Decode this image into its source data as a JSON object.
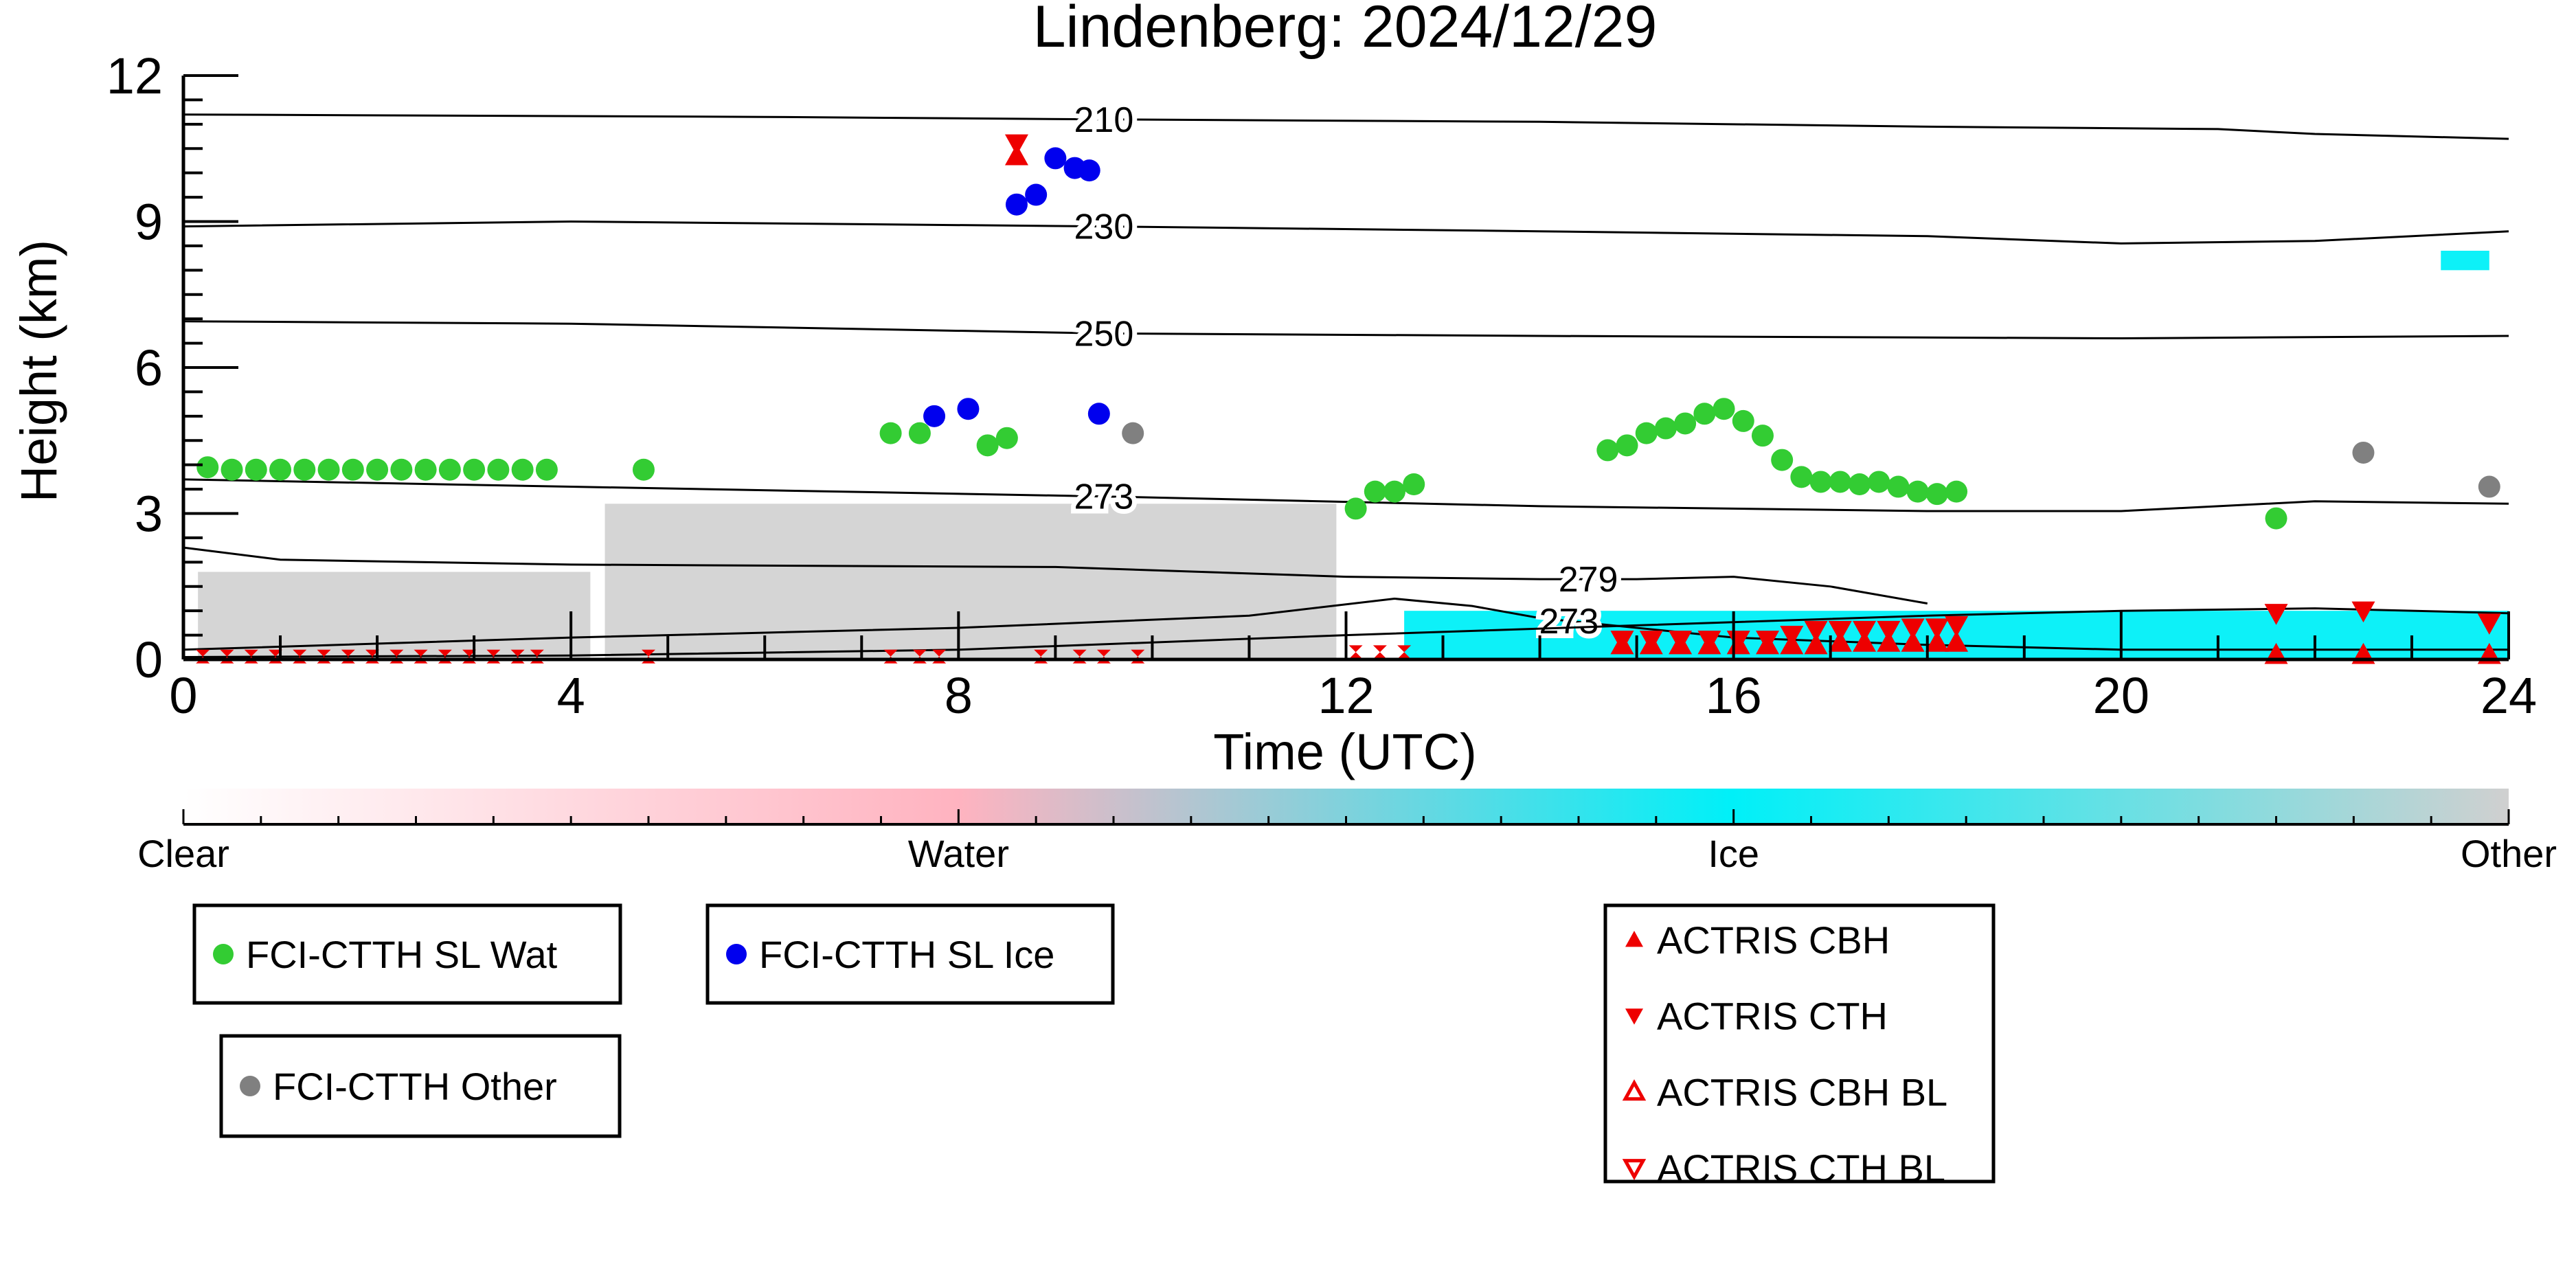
{
  "chart_data": {
    "type": "scatter",
    "title": "Lindenberg: 2024/12/29",
    "xlabel": "Time (UTC)",
    "ylabel": "Height (km)",
    "xlim": [
      0,
      24
    ],
    "ylim": [
      0,
      12
    ],
    "xticks": [
      0,
      4,
      8,
      12,
      16,
      20,
      24
    ],
    "yticks": [
      0,
      3,
      6,
      9,
      12
    ],
    "grid": false,
    "colorbar": {
      "labels": [
        "Clear",
        "Water",
        "Ice",
        "Other"
      ],
      "colors": [
        "#ffffff",
        "#ffb3c0",
        "#00f0f8",
        "#d0d0d0"
      ]
    },
    "temperature_contours": [
      {
        "label": "210",
        "label_x": 9.5,
        "points": [
          [
            0,
            11.2
          ],
          [
            6,
            11.15
          ],
          [
            9.5,
            11.1
          ],
          [
            14,
            11.05
          ],
          [
            18,
            10.95
          ],
          [
            21,
            10.9
          ],
          [
            22,
            10.8
          ],
          [
            24,
            10.7
          ]
        ]
      },
      {
        "label": "230",
        "label_x": 9.5,
        "points": [
          [
            0,
            8.9
          ],
          [
            4,
            9.0
          ],
          [
            9.5,
            8.9
          ],
          [
            14,
            8.8
          ],
          [
            18,
            8.7
          ],
          [
            20,
            8.55
          ],
          [
            22,
            8.6
          ],
          [
            24,
            8.8
          ]
        ]
      },
      {
        "label": "250",
        "label_x": 9.5,
        "points": [
          [
            0,
            6.95
          ],
          [
            4,
            6.9
          ],
          [
            9.5,
            6.7
          ],
          [
            14,
            6.65
          ],
          [
            20,
            6.6
          ],
          [
            24,
            6.65
          ]
        ]
      },
      {
        "label": "273",
        "label_x": 9.5,
        "points": [
          [
            0,
            3.7
          ],
          [
            4,
            3.55
          ],
          [
            9.5,
            3.35
          ],
          [
            14,
            3.15
          ],
          [
            18,
            3.05
          ],
          [
            20,
            3.05
          ],
          [
            22,
            3.25
          ],
          [
            24,
            3.2
          ]
        ]
      },
      {
        "label": "279",
        "label_x": 14.5,
        "points": [
          [
            0,
            2.3
          ],
          [
            1,
            2.05
          ],
          [
            4,
            1.95
          ],
          [
            9,
            1.9
          ],
          [
            12,
            1.7
          ],
          [
            14,
            1.65
          ],
          [
            15,
            1.65
          ],
          [
            16,
            1.7
          ],
          [
            17,
            1.5
          ],
          [
            18,
            1.15
          ]
        ]
      },
      {
        "label": "273",
        "label_x": 14.3,
        "points": [
          [
            0,
            0.2
          ],
          [
            4,
            0.45
          ],
          [
            8,
            0.65
          ],
          [
            11,
            0.9
          ],
          [
            12.5,
            1.25
          ],
          [
            13.3,
            1.1
          ],
          [
            14,
            0.85
          ],
          [
            16,
            0.45
          ],
          [
            18,
            0.3
          ],
          [
            20,
            0.2
          ],
          [
            22,
            0.2
          ],
          [
            24,
            0.2
          ]
        ]
      },
      {
        "label": "",
        "label_x": null,
        "points": [
          [
            0,
            0.05
          ],
          [
            4,
            0.08
          ],
          [
            8,
            0.2
          ],
          [
            12,
            0.5
          ],
          [
            15,
            0.7
          ],
          [
            18,
            0.9
          ],
          [
            20,
            1.0
          ],
          [
            22,
            1.05
          ],
          [
            24,
            0.95
          ]
        ]
      }
    ],
    "classification_regions": [
      {
        "class": "Other",
        "color": "#d3d3d3",
        "x": [
          4.35,
          11.9
        ],
        "y": [
          0,
          3.2
        ]
      },
      {
        "class": "Other",
        "color": "#d3d3d3",
        "x": [
          0.15,
          4.2
        ],
        "y": [
          0,
          1.8
        ]
      },
      {
        "class": "Ice",
        "color": "#00f0f8",
        "x": [
          12.6,
          24
        ],
        "y": [
          0,
          1.0
        ]
      },
      {
        "class": "Ice",
        "color": "#00f0f8",
        "x": [
          23.3,
          23.8
        ],
        "y": [
          8.0,
          8.4
        ]
      }
    ],
    "series": [
      {
        "name": "FCI-CTTH SL Wat",
        "marker": "circle",
        "color": "#33cc33",
        "x": [
          0.25,
          0.5,
          0.75,
          1.0,
          1.25,
          1.5,
          1.75,
          2.0,
          2.25,
          2.5,
          2.75,
          3.0,
          3.25,
          3.5,
          3.75,
          4.75,
          7.3,
          7.6,
          8.3,
          8.5,
          12.1,
          12.3,
          12.5,
          12.7,
          14.7,
          14.9,
          15.1,
          15.3,
          15.5,
          15.7,
          15.9,
          16.1,
          16.3,
          16.5,
          16.7,
          16.9,
          17.1,
          17.3,
          17.5,
          17.7,
          17.9,
          18.1,
          18.3,
          21.6
        ],
        "y": [
          3.95,
          3.9,
          3.9,
          3.9,
          3.9,
          3.9,
          3.9,
          3.9,
          3.9,
          3.9,
          3.9,
          3.9,
          3.9,
          3.9,
          3.9,
          3.9,
          4.65,
          4.65,
          4.4,
          4.55,
          3.1,
          3.45,
          3.45,
          3.6,
          4.3,
          4.4,
          4.65,
          4.75,
          4.85,
          5.05,
          5.15,
          4.9,
          4.6,
          4.1,
          3.75,
          3.65,
          3.65,
          3.6,
          3.65,
          3.55,
          3.45,
          3.4,
          3.45,
          2.9
        ]
      },
      {
        "name": "FCI-CTTH SL Ice",
        "marker": "circle",
        "color": "#0000ee",
        "x": [
          7.75,
          8.1,
          8.6,
          8.8,
          9.0,
          9.2,
          9.35,
          9.45
        ],
        "y": [
          5.0,
          5.15,
          9.35,
          9.55,
          10.3,
          10.1,
          10.05,
          5.05
        ]
      },
      {
        "name": "FCI-CTTH Other",
        "marker": "circle",
        "color": "#808080",
        "x": [
          9.8,
          22.5,
          23.8
        ],
        "y": [
          4.65,
          4.25,
          3.55
        ]
      },
      {
        "name": "ACTRIS CBH",
        "marker": "triangle-up",
        "color": "#ee0000",
        "x": [
          8.6,
          14.85,
          15.15,
          15.45,
          15.75,
          16.05,
          16.35,
          16.6,
          16.85,
          17.1,
          17.35,
          17.6,
          17.85,
          18.1,
          18.3,
          21.6,
          22.5,
          23.8
        ],
        "y": [
          10.35,
          0.3,
          0.3,
          0.3,
          0.3,
          0.3,
          0.3,
          0.3,
          0.3,
          0.35,
          0.35,
          0.35,
          0.35,
          0.35,
          0.35,
          0.1,
          0.1,
          0.1
        ]
      },
      {
        "name": "ACTRIS CTH",
        "marker": "triangle-down",
        "color": "#ee0000",
        "x": [
          8.6,
          14.85,
          15.15,
          15.45,
          15.75,
          16.05,
          16.35,
          16.6,
          16.85,
          17.1,
          17.35,
          17.6,
          17.85,
          18.1,
          18.3,
          21.6,
          22.5,
          23.8
        ],
        "y": [
          10.6,
          0.4,
          0.4,
          0.4,
          0.4,
          0.4,
          0.4,
          0.5,
          0.6,
          0.6,
          0.6,
          0.6,
          0.65,
          0.65,
          0.7,
          0.95,
          1.0,
          0.75
        ]
      },
      {
        "name": "ACTRIS CBH BL",
        "marker": "triangle-up-open",
        "color": "#ee0000",
        "x": [],
        "y": []
      },
      {
        "name": "ACTRIS CTH BL",
        "marker": "triangle-down-open",
        "color": "#ee0000",
        "x": [],
        "y": []
      },
      {
        "name": "",
        "marker": "hourglass-small",
        "color": "#ee0000",
        "x": [
          0.2,
          0.45,
          0.7,
          0.95,
          1.2,
          1.45,
          1.7,
          1.95,
          2.2,
          2.45,
          2.7,
          2.95,
          3.2,
          3.45,
          3.65,
          4.8,
          7.3,
          7.6,
          7.8,
          8.85,
          9.25,
          9.5,
          9.85,
          12.1,
          12.35,
          12.6
        ],
        "y": [
          0.06,
          0.06,
          0.06,
          0.06,
          0.06,
          0.06,
          0.06,
          0.06,
          0.06,
          0.06,
          0.06,
          0.06,
          0.06,
          0.06,
          0.06,
          0.06,
          0.06,
          0.06,
          0.06,
          0.06,
          0.06,
          0.06,
          0.06,
          0.15,
          0.15,
          0.15
        ]
      }
    ],
    "legends": [
      {
        "entries": [
          "FCI-CTTH SL Wat"
        ]
      },
      {
        "entries": [
          "FCI-CTTH SL Ice"
        ]
      },
      {
        "entries": [
          "FCI-CTTH Other"
        ]
      },
      {
        "entries": [
          "ACTRIS CBH",
          "ACTRIS CTH",
          "ACTRIS CBH BL",
          "ACTRIS CTH BL"
        ]
      }
    ]
  }
}
